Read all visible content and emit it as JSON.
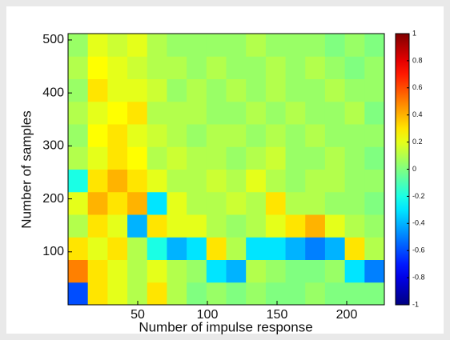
{
  "chart_data": {
    "type": "heatmap",
    "xlabel": "Number of impulse response",
    "ylabel": "Number of samples",
    "xlim": [
      0,
      227
    ],
    "xticks": [
      50,
      100,
      150,
      200
    ],
    "ylim": [
      0,
      512
    ],
    "yticks": [
      100,
      200,
      300,
      400,
      500
    ],
    "colormap": "jet",
    "clim": [
      -1,
      1
    ],
    "cticks": [
      -1,
      -0.8,
      -0.6,
      -0.4,
      -0.2,
      0,
      0.2,
      0.4,
      0.6,
      0.8,
      1
    ],
    "z": [
      [
        -0.6,
        0.3,
        0.2,
        0.1,
        0.3,
        0.1,
        0,
        0.05,
        0,
        0.05,
        0,
        0,
        0.05,
        0,
        0,
        0
      ],
      [
        0.5,
        0.3,
        0.2,
        0.1,
        0.2,
        0.1,
        0.05,
        -0.3,
        -0.4,
        0.1,
        0.05,
        0,
        0,
        0.05,
        -0.3,
        -0.5
      ],
      [
        0.3,
        0.2,
        0.3,
        0.1,
        -0.2,
        -0.4,
        -0.3,
        0.3,
        0.1,
        -0.3,
        -0.3,
        -0.4,
        -0.5,
        -0.4,
        0.3,
        0.1
      ],
      [
        0.1,
        0.3,
        0.2,
        -0.4,
        0.3,
        0.2,
        0.2,
        0.1,
        0.05,
        0.1,
        0.2,
        0.3,
        0.4,
        0.2,
        0.1,
        0.05
      ],
      [
        0.2,
        0.4,
        0.3,
        0.4,
        -0.3,
        0.2,
        0.1,
        0.1,
        0.15,
        0.1,
        0.3,
        0.1,
        0.1,
        0.05,
        0.05,
        0
      ],
      [
        -0.2,
        0.3,
        0.4,
        0.3,
        0.2,
        0.1,
        0.1,
        0.15,
        0.1,
        0.2,
        0.1,
        0.05,
        0.1,
        0.1,
        0.05,
        0.05
      ],
      [
        0.1,
        0.2,
        0.3,
        0.25,
        0.1,
        0.15,
        0.1,
        0.1,
        0.05,
        0.1,
        0.15,
        0.05,
        0.05,
        0.1,
        0.05,
        0
      ],
      [
        0.05,
        0.25,
        0.3,
        0.2,
        0.15,
        0.1,
        0.05,
        0.1,
        0.1,
        0.05,
        0.1,
        0.05,
        0.1,
        0.05,
        0.05,
        0.05
      ],
      [
        0.1,
        0.2,
        0.25,
        0.3,
        0.1,
        0.1,
        0.1,
        0.05,
        0.05,
        0.1,
        0.05,
        0.1,
        0.05,
        0.05,
        0.1,
        0
      ],
      [
        0.05,
        0.3,
        0.2,
        0.2,
        0.15,
        0.05,
        0.1,
        0.05,
        0.1,
        0.05,
        0.1,
        0.05,
        0.05,
        0.1,
        0.05,
        0.05
      ],
      [
        0.1,
        0.25,
        0.2,
        0.15,
        0.1,
        0.1,
        0.05,
        0.1,
        0.05,
        0.05,
        0.1,
        0.05,
        0.1,
        0.05,
        0,
        0.05
      ],
      [
        0.05,
        0.2,
        0.15,
        0.2,
        0.1,
        0.05,
        0.05,
        0.05,
        0.05,
        0.1,
        0.05,
        0.05,
        0.05,
        0,
        0.05,
        0
      ]
    ]
  }
}
